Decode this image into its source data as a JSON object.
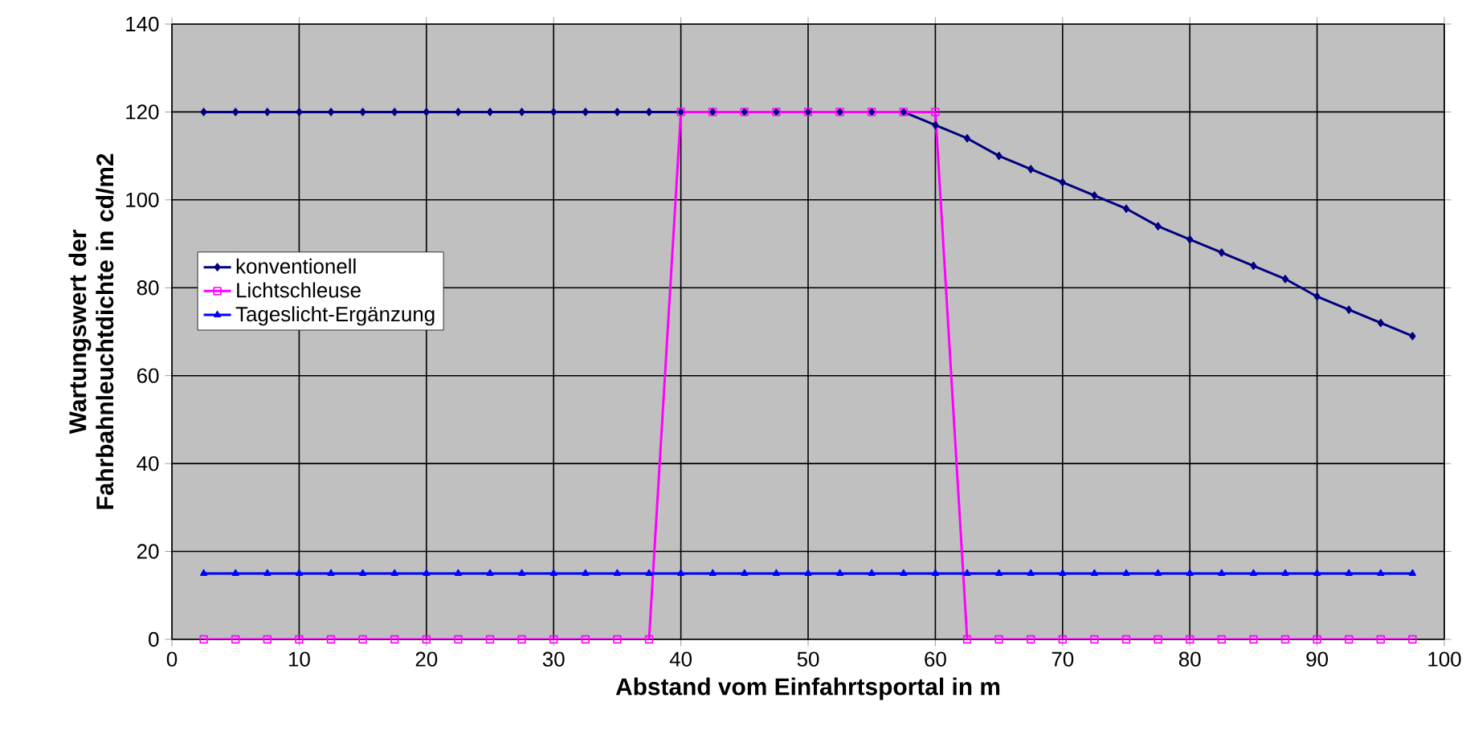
{
  "chart_data": {
    "type": "line",
    "xlabel": "Abstand vom Einfahrtsportal in m",
    "ylabel": "Wartungswert der Fahrbahnleuchtdichte in cd/m2",
    "x": [
      2.5,
      5,
      7.5,
      10,
      12.5,
      15,
      17.5,
      20,
      22.5,
      25,
      27.5,
      30,
      32.5,
      35,
      37.5,
      40,
      42.5,
      45,
      47.5,
      50,
      52.5,
      55,
      57.5,
      60,
      62.5,
      65,
      67.5,
      70,
      72.5,
      75,
      77.5,
      80,
      82.5,
      85,
      87.5,
      90,
      92.5,
      95,
      97.5
    ],
    "series": [
      {
        "name": "konventionell",
        "color": "#000080",
        "marker": "diamond",
        "values": [
          120,
          120,
          120,
          120,
          120,
          120,
          120,
          120,
          120,
          120,
          120,
          120,
          120,
          120,
          120,
          120,
          120,
          120,
          120,
          120,
          120,
          120,
          120,
          117,
          114,
          110,
          107,
          104,
          101,
          98,
          94,
          91,
          88,
          85,
          82,
          78,
          75,
          72,
          69
        ]
      },
      {
        "name": "Lichtschleuse",
        "color": "#ff00ff",
        "marker": "square",
        "values": [
          0,
          0,
          0,
          0,
          0,
          0,
          0,
          0,
          0,
          0,
          0,
          0,
          0,
          0,
          0,
          120,
          120,
          120,
          120,
          120,
          120,
          120,
          120,
          120,
          0,
          0,
          0,
          0,
          0,
          0,
          0,
          0,
          0,
          0,
          0,
          0,
          0,
          0,
          0
        ]
      },
      {
        "name": "Tageslicht-Ergänzung",
        "color": "#0000ff",
        "marker": "triangle",
        "values": [
          15,
          15,
          15,
          15,
          15,
          15,
          15,
          15,
          15,
          15,
          15,
          15,
          15,
          15,
          15,
          15,
          15,
          15,
          15,
          15,
          15,
          15,
          15,
          15,
          15,
          15,
          15,
          15,
          15,
          15,
          15,
          15,
          15,
          15,
          15,
          15,
          15,
          15,
          15
        ]
      }
    ],
    "xlim": [
      0,
      100
    ],
    "xticks": [
      0,
      10,
      20,
      30,
      40,
      50,
      60,
      70,
      80,
      90,
      100
    ],
    "ylim": [
      0,
      140
    ],
    "yticks": [
      0,
      20,
      40,
      60,
      80,
      100,
      120,
      140
    ],
    "grid": true,
    "legend": "left",
    "line_style": "solid"
  }
}
